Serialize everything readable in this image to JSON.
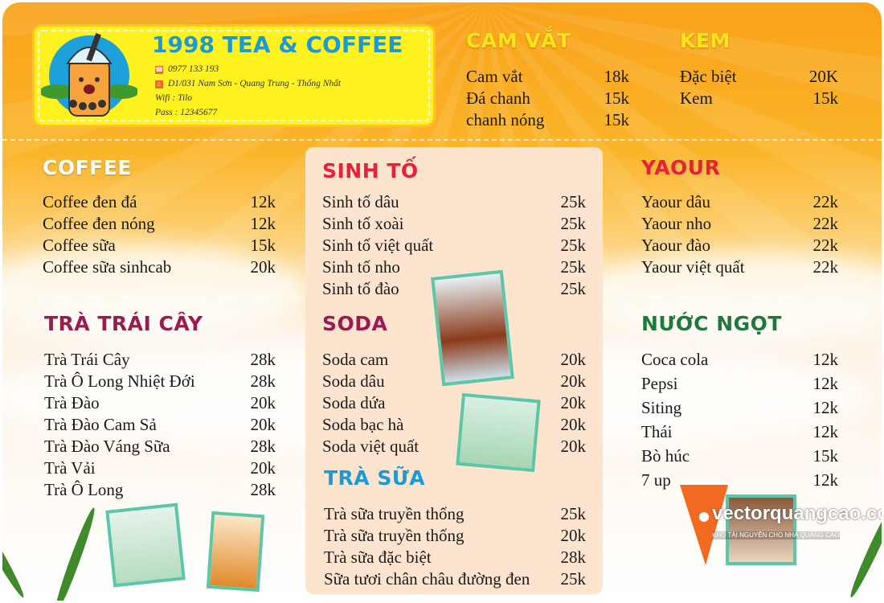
{
  "header": {
    "brand": "1998 TEA & COFFEE",
    "phone": "0977 133 193",
    "address": "D1/031 Nam Sơn - Quang Trung - Thống Nhất",
    "wifi": "Wifi : Tilo",
    "pass": "Pass : 12345677",
    "phone_icon": "phone-icon",
    "address_icon": "home-icon"
  },
  "colors": {
    "white": "#ffffff",
    "yellow": "#ffe31a",
    "red": "#e8203a",
    "maroon": "#9b1b4e",
    "blue": "#1a9ad6",
    "green": "#1d7a3a",
    "panel": "#fde4cf"
  },
  "sections": {
    "cam_vat": {
      "title": "CAM VẮT",
      "items": [
        {
          "name": "Cam vắt",
          "price": "18k"
        },
        {
          "name": "Đá chanh",
          "price": "15k"
        },
        {
          "name": "chanh nóng",
          "price": "15k"
        }
      ]
    },
    "kem": {
      "title": "KEM",
      "items": [
        {
          "name": "Đặc biệt",
          "price": "20K"
        },
        {
          "name": "Kem",
          "price": "15k"
        }
      ]
    },
    "coffee": {
      "title": "COFFEE",
      "items": [
        {
          "name": "Coffee đen đá",
          "price": "12k"
        },
        {
          "name": "Coffee đen nóng",
          "price": "12k"
        },
        {
          "name": "Coffee sữa",
          "price": "15k"
        },
        {
          "name": "Coffee sữa  sinhcab",
          "price": "20k"
        }
      ]
    },
    "tra_trai_cay": {
      "title": "TRÀ TRÁI CÂY",
      "items": [
        {
          "name": "Trà Trái Cây",
          "price": "28k"
        },
        {
          "name": "Trà Ô Long Nhiệt Đới",
          "price": "28k"
        },
        {
          "name": "Trà Đào",
          "price": "20k"
        },
        {
          "name": "Trà Đào Cam Sả",
          "price": "20k"
        },
        {
          "name": "Trà Đào Váng Sữa",
          "price": "28k"
        },
        {
          "name": "Trà Vải",
          "price": "20k"
        },
        {
          "name": "Trà Ô Long",
          "price": "28k"
        }
      ]
    },
    "sinh_to": {
      "title": "SINH TỐ",
      "items": [
        {
          "name": "Sinh tố dâu",
          "price": "25k"
        },
        {
          "name": "Sinh tố xoài",
          "price": "25k"
        },
        {
          "name": "Sinh tố việt quất",
          "price": "25k"
        },
        {
          "name": "Sinh tố nho",
          "price": "25k"
        },
        {
          "name": "Sinh tố đào",
          "price": "25k"
        }
      ]
    },
    "soda": {
      "title": "SODA",
      "items": [
        {
          "name": "Soda cam",
          "price": "20k"
        },
        {
          "name": "Soda dâu",
          "price": "20k"
        },
        {
          "name": "Soda dứa",
          "price": "20k"
        },
        {
          "name": "Soda bạc hà",
          "price": "20k"
        },
        {
          "name": "Soda việt quất",
          "price": "20k"
        }
      ]
    },
    "tra_sua": {
      "title": "TRÀ SỮA",
      "items": [
        {
          "name": "Trà sữa truyền thống",
          "price": "25k"
        },
        {
          "name": "Trà sữa truyền thống",
          "price": "20k"
        },
        {
          "name": "Trà sữa đặc biệt",
          "price": "28k"
        },
        {
          "name": "Sữa tươi chân châu đường đen",
          "price": "25k"
        }
      ]
    },
    "yaour": {
      "title": "YAOUR",
      "items": [
        {
          "name": "Yaour dâu",
          "price": "22k"
        },
        {
          "name": "Yaour nho",
          "price": "22k"
        },
        {
          "name": "Yaour đào",
          "price": "22k"
        },
        {
          "name": "Yaour việt quất",
          "price": "22k"
        }
      ]
    },
    "nuoc_ngot": {
      "title": "NƯỚC NGỌT",
      "items": [
        {
          "name": "Coca cola",
          "price": "12k"
        },
        {
          "name": "Pepsi",
          "price": "12k"
        },
        {
          "name": "Siting",
          "price": "12k"
        },
        {
          "name": "Thái",
          "price": "12k"
        },
        {
          "name": "Bò húc",
          "price": "15k"
        },
        {
          "name": "7 up",
          "price": "12k"
        }
      ]
    }
  },
  "watermark": {
    "name": "vectorquangcao.com",
    "tagline": "KHO TÀI NGUYÊN CHO NHÀ QUẢNG CÁO"
  }
}
